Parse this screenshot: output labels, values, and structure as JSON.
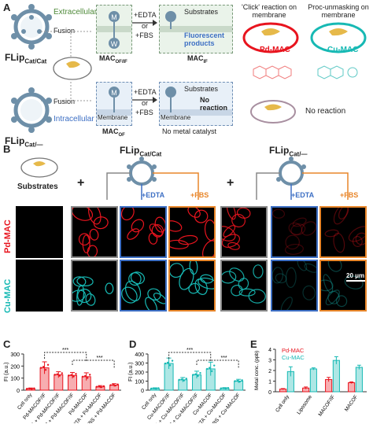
{
  "panel_letters": {
    "a": "A",
    "b": "B",
    "c": "C",
    "d": "D",
    "e": "E"
  },
  "panel_a": {
    "flip_cat_cat": "FLip",
    "flip_cat_cat_sub": "Cat/Cat",
    "flip_cat_null": "FLip",
    "flip_cat_null_sub": "Cat/—",
    "extracellular": "Extracellular",
    "intracellular": "Intracellular",
    "fusion1": "Fusion",
    "fusion2": "Fusion",
    "mac_of_if": "MAC",
    "mac_of_if_sub": "OF/IF",
    "mac_if": "MAC",
    "mac_if_sub": "IF",
    "mac_of": "MAC",
    "mac_of_sub": "OF",
    "edta1": "+EDTA",
    "or1": "or",
    "fbs1": "+FBS",
    "edta2": "+EDTA",
    "or2": "or",
    "fbs2": "+FBS",
    "substrates1": "Substrates",
    "fluorescent_products": "Fluorescent products",
    "substrates2": "Substrates",
    "membrane1": "Membrane",
    "membrane2": "Membrane",
    "no_reaction_box": "No reaction",
    "no_metal_catalyst": "No metal catalyst",
    "click_reaction": "'Click' reaction on membrane",
    "proc_unmasking": "Proc-unmasking on membrane",
    "pd_mac": "Pd-MAC",
    "cu_mac": "Cu-MAC",
    "no_reaction_right": "No reaction",
    "m_letter": "M",
    "w_letter": "W"
  },
  "panel_b": {
    "substrates": "Substrates",
    "plus1": "+",
    "plus2": "+",
    "flip_cat_cat": "FLip",
    "flip_cat_cat_sub": "Cat/Cat",
    "flip_cat_null": "FLip",
    "flip_cat_null_sub": "Cat/—",
    "edta1": "+EDTA",
    "fbs1": "+FBS",
    "edta2": "+EDTA",
    "fbs2": "+FBS",
    "row_pd": "Pd-MAC",
    "row_cu": "Cu-MAC",
    "scale1": "20 μm",
    "scale2": "20 μm",
    "colors": {
      "pd": "#e8141e",
      "cu": "#17b9b4",
      "edta": "#3d6fc4",
      "fbs": "#e8862a"
    }
  },
  "chart_data": [
    {
      "panel": "C",
      "type": "bar",
      "ylabel": "FI (a.u.)",
      "ylim": [
        0,
        300
      ],
      "yticks": [
        0,
        100,
        200,
        300
      ],
      "categories": [
        "Cell only",
        "Pd-MAC_OF/IF",
        "EDTA + Pd-MAC_OF/IF",
        "FBS + Pd-MAC_OF/IF",
        "Pd-MAC_OF",
        "EDTA + Pd-MAC_OF",
        "FBS + Pd-MAC_OF"
      ],
      "values": [
        12,
        185,
        128,
        122,
        112,
        28,
        42
      ],
      "errors": [
        6,
        50,
        25,
        25,
        32,
        10,
        12
      ],
      "color": "#e8141e",
      "significance": [
        "***",
        "***"
      ]
    },
    {
      "panel": "D",
      "type": "bar",
      "ylabel": "FI (a.u.)",
      "ylim": [
        0,
        400
      ],
      "yticks": [
        0,
        100,
        200,
        300,
        400
      ],
      "categories": [
        "Cell only",
        "Cu-MAC_OF/IF",
        "EDTA + Cu-MAC_OF/IF",
        "FBS + Cu-MAC_OF/IF",
        "Cu-MAC_OF",
        "EDTA + Cu-MAC_OF",
        "FBS + Cu-MAC_OF"
      ],
      "values": [
        18,
        295,
        115,
        170,
        235,
        20,
        100
      ],
      "errors": [
        8,
        60,
        25,
        40,
        75,
        8,
        20
      ],
      "color": "#17b9b4",
      "significance": [
        "***",
        "***"
      ]
    },
    {
      "panel": "E",
      "type": "bar",
      "ylabel": "Metal conc. (ppb)",
      "ylim": [
        0,
        4
      ],
      "yticks": [
        0,
        1,
        2,
        3,
        4
      ],
      "categories": [
        "Cell only",
        "Liposome",
        "MAC_OF/IF",
        "MAC_OF"
      ],
      "series": [
        {
          "name": "Pd-MAC",
          "values": [
            0.25,
            0.35,
            1.15,
            0.85
          ],
          "errors": [
            0.05,
            0.1,
            0.2,
            0.08
          ],
          "color": "#e8141e"
        },
        {
          "name": "Cu-MAC",
          "values": [
            1.9,
            2.15,
            2.95,
            2.3
          ],
          "errors": [
            0.45,
            0.1,
            0.35,
            0.2
          ],
          "color": "#17b9b4"
        }
      ],
      "legend": "top-left"
    }
  ]
}
